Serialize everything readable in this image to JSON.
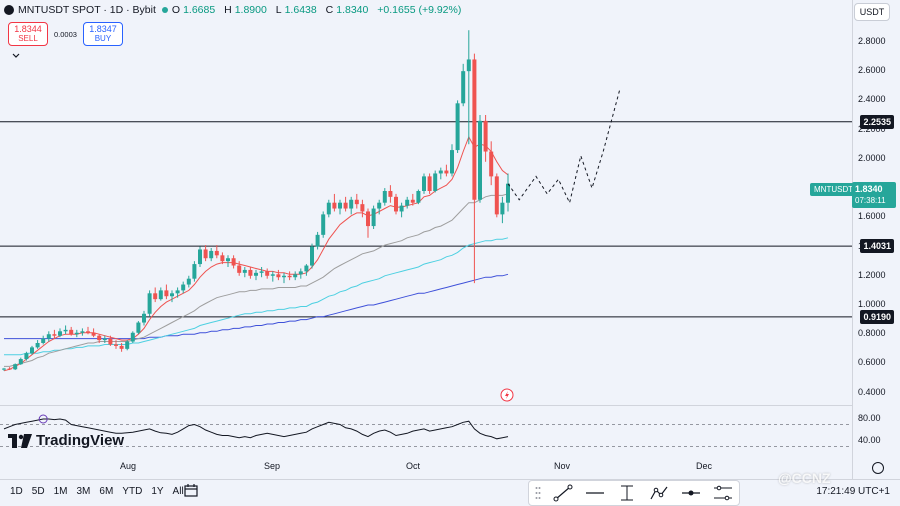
{
  "header": {
    "symbol": "MNTUSDT SPOT · 1D · Bybit",
    "open_label": "O",
    "open": "1.6685",
    "high_label": "H",
    "high": "1.8900",
    "low_label": "L",
    "low": "1.6438",
    "close_label": "C",
    "close": "1.8340",
    "change": "+0.1655 (+9.92%)"
  },
  "trade": {
    "sell_price": "1.8344",
    "sell_label": "SELL",
    "spread": "0.0003",
    "buy_price": "1.8347",
    "buy_label": "BUY"
  },
  "currency": "USDT",
  "price_axis": [
    "2.8000",
    "2.6000",
    "2.4000",
    "2.2000",
    "2.0000",
    "1.8000",
    "1.6000",
    "1.4000",
    "1.2000",
    "1.0000",
    "0.8000",
    "0.6000",
    "0.4000"
  ],
  "levels": [
    {
      "label": "2.2535",
      "value": 2.2535
    },
    {
      "label": "1.4031",
      "value": 1.4031
    },
    {
      "label": "0.9190",
      "value": 0.919
    }
  ],
  "last_price": {
    "symbol": "MNTUSDT",
    "price": "1.8340",
    "countdown": "07:38:11"
  },
  "osc_axis": [
    "80.00",
    "40.00"
  ],
  "time_axis": [
    "Aug",
    "Sep",
    "Oct",
    "Nov",
    "Dec"
  ],
  "brand": "TradingView",
  "ranges": [
    "1D",
    "5D",
    "1M",
    "3M",
    "6M",
    "YTD",
    "1Y",
    "All"
  ],
  "tools": [
    "trend-line",
    "horizontal-line",
    "fib",
    "path",
    "arrow",
    "ranges"
  ],
  "clock": "17:21:49 UTC+1",
  "watermark": "@CCNZ",
  "colors": {
    "up": "#26a69a",
    "down": "#ef5350",
    "ema_fast": "#ef5350",
    "ema_mid": "#9e9e9e",
    "ema_slow": "#4dd0e1",
    "ema_long": "#3f51d9"
  },
  "chart_data": {
    "type": "candlestick",
    "y_range": [
      0.35,
      2.95
    ],
    "candles": [
      [
        0.56,
        0.57,
        0.55,
        0.565
      ],
      [
        0.565,
        0.575,
        0.555,
        0.56
      ],
      [
        0.56,
        0.6,
        0.555,
        0.595
      ],
      [
        0.595,
        0.64,
        0.59,
        0.63
      ],
      [
        0.63,
        0.68,
        0.62,
        0.67
      ],
      [
        0.67,
        0.72,
        0.66,
        0.71
      ],
      [
        0.71,
        0.76,
        0.7,
        0.74
      ],
      [
        0.74,
        0.79,
        0.73,
        0.77
      ],
      [
        0.77,
        0.82,
        0.75,
        0.8
      ],
      [
        0.8,
        0.83,
        0.77,
        0.79
      ],
      [
        0.79,
        0.84,
        0.78,
        0.82
      ],
      [
        0.82,
        0.86,
        0.8,
        0.83
      ],
      [
        0.83,
        0.85,
        0.79,
        0.8
      ],
      [
        0.8,
        0.83,
        0.78,
        0.81
      ],
      [
        0.81,
        0.84,
        0.79,
        0.82
      ],
      [
        0.82,
        0.85,
        0.8,
        0.81
      ],
      [
        0.81,
        0.84,
        0.78,
        0.79
      ],
      [
        0.79,
        0.8,
        0.74,
        0.76
      ],
      [
        0.76,
        0.79,
        0.74,
        0.77
      ],
      [
        0.77,
        0.79,
        0.72,
        0.73
      ],
      [
        0.73,
        0.76,
        0.7,
        0.72
      ],
      [
        0.72,
        0.74,
        0.68,
        0.7
      ],
      [
        0.7,
        0.76,
        0.69,
        0.75
      ],
      [
        0.75,
        0.82,
        0.74,
        0.81
      ],
      [
        0.81,
        0.89,
        0.8,
        0.88
      ],
      [
        0.88,
        0.96,
        0.86,
        0.94
      ],
      [
        0.94,
        1.1,
        0.92,
        1.08
      ],
      [
        1.08,
        1.12,
        1.02,
        1.04
      ],
      [
        1.04,
        1.12,
        1.03,
        1.1
      ],
      [
        1.1,
        1.14,
        1.04,
        1.06
      ],
      [
        1.06,
        1.1,
        1.02,
        1.08
      ],
      [
        1.08,
        1.12,
        1.05,
        1.1
      ],
      [
        1.1,
        1.16,
        1.08,
        1.14
      ],
      [
        1.14,
        1.2,
        1.12,
        1.18
      ],
      [
        1.18,
        1.3,
        1.16,
        1.28
      ],
      [
        1.28,
        1.4,
        1.26,
        1.38
      ],
      [
        1.38,
        1.41,
        1.3,
        1.32
      ],
      [
        1.32,
        1.39,
        1.3,
        1.37
      ],
      [
        1.37,
        1.41,
        1.32,
        1.34
      ],
      [
        1.34,
        1.36,
        1.28,
        1.3
      ],
      [
        1.3,
        1.34,
        1.26,
        1.32
      ],
      [
        1.32,
        1.34,
        1.25,
        1.27
      ],
      [
        1.27,
        1.3,
        1.2,
        1.22
      ],
      [
        1.22,
        1.26,
        1.19,
        1.24
      ],
      [
        1.24,
        1.26,
        1.18,
        1.2
      ],
      [
        1.2,
        1.24,
        1.17,
        1.22
      ],
      [
        1.22,
        1.26,
        1.19,
        1.23
      ],
      [
        1.23,
        1.25,
        1.18,
        1.2
      ],
      [
        1.2,
        1.23,
        1.16,
        1.21
      ],
      [
        1.21,
        1.24,
        1.17,
        1.19
      ],
      [
        1.19,
        1.22,
        1.15,
        1.2
      ],
      [
        1.2,
        1.23,
        1.17,
        1.19
      ],
      [
        1.19,
        1.23,
        1.17,
        1.21
      ],
      [
        1.21,
        1.25,
        1.18,
        1.23
      ],
      [
        1.23,
        1.28,
        1.2,
        1.27
      ],
      [
        1.27,
        1.42,
        1.25,
        1.4
      ],
      [
        1.4,
        1.5,
        1.38,
        1.48
      ],
      [
        1.48,
        1.64,
        1.46,
        1.62
      ],
      [
        1.62,
        1.72,
        1.6,
        1.7
      ],
      [
        1.7,
        1.76,
        1.64,
        1.66
      ],
      [
        1.66,
        1.72,
        1.62,
        1.7
      ],
      [
        1.7,
        1.74,
        1.64,
        1.66
      ],
      [
        1.66,
        1.74,
        1.62,
        1.72
      ],
      [
        1.72,
        1.76,
        1.66,
        1.69
      ],
      [
        1.69,
        1.72,
        1.6,
        1.64
      ],
      [
        1.64,
        1.66,
        1.46,
        1.54
      ],
      [
        1.54,
        1.68,
        1.52,
        1.66
      ],
      [
        1.66,
        1.72,
        1.62,
        1.7
      ],
      [
        1.7,
        1.8,
        1.68,
        1.78
      ],
      [
        1.78,
        1.82,
        1.7,
        1.74
      ],
      [
        1.74,
        1.76,
        1.62,
        1.64
      ],
      [
        1.64,
        1.7,
        1.6,
        1.68
      ],
      [
        1.68,
        1.74,
        1.66,
        1.72
      ],
      [
        1.72,
        1.76,
        1.68,
        1.7
      ],
      [
        1.7,
        1.79,
        1.69,
        1.78
      ],
      [
        1.78,
        1.9,
        1.76,
        1.88
      ],
      [
        1.88,
        1.9,
        1.76,
        1.78
      ],
      [
        1.78,
        1.92,
        1.77,
        1.9
      ],
      [
        1.9,
        1.94,
        1.86,
        1.92
      ],
      [
        1.92,
        1.96,
        1.88,
        1.9
      ],
      [
        1.9,
        2.1,
        1.88,
        2.06
      ],
      [
        2.06,
        2.4,
        2.04,
        2.38
      ],
      [
        2.38,
        2.65,
        2.36,
        2.6
      ],
      [
        2.6,
        2.88,
        2.1,
        2.68
      ],
      [
        2.68,
        2.72,
        1.15,
        1.72
      ],
      [
        1.72,
        2.3,
        1.7,
        2.26
      ],
      [
        2.26,
        2.3,
        1.98,
        2.05
      ],
      [
        2.05,
        2.12,
        1.82,
        1.88
      ],
      [
        1.88,
        1.9,
        1.6,
        1.62
      ],
      [
        1.62,
        1.74,
        1.56,
        1.7
      ],
      [
        1.7,
        1.9,
        1.64,
        1.83
      ]
    ],
    "ema_fast": [
      0.55,
      0.56,
      0.58,
      0.6,
      0.63,
      0.66,
      0.69,
      0.72,
      0.75,
      0.77,
      0.79,
      0.8,
      0.8,
      0.8,
      0.81,
      0.81,
      0.81,
      0.8,
      0.79,
      0.78,
      0.77,
      0.76,
      0.76,
      0.77,
      0.8,
      0.84,
      0.9,
      0.95,
      0.99,
      1.02,
      1.04,
      1.06,
      1.08,
      1.1,
      1.14,
      1.19,
      1.23,
      1.26,
      1.28,
      1.29,
      1.29,
      1.29,
      1.28,
      1.27,
      1.26,
      1.25,
      1.24,
      1.23,
      1.23,
      1.22,
      1.22,
      1.21,
      1.21,
      1.21,
      1.22,
      1.26,
      1.31,
      1.38,
      1.45,
      1.5,
      1.55,
      1.58,
      1.61,
      1.63,
      1.63,
      1.61,
      1.62,
      1.64,
      1.66,
      1.68,
      1.67,
      1.67,
      1.68,
      1.69,
      1.7,
      1.74,
      1.75,
      1.78,
      1.8,
      1.82,
      1.86,
      1.94,
      2.05,
      2.15,
      2.08,
      2.1,
      2.09,
      2.05,
      1.98,
      1.92,
      1.89
    ],
    "ema_mid": [
      0.58,
      0.58,
      0.59,
      0.6,
      0.61,
      0.62,
      0.64,
      0.65,
      0.67,
      0.68,
      0.69,
      0.7,
      0.71,
      0.72,
      0.73,
      0.74,
      0.74,
      0.75,
      0.75,
      0.75,
      0.75,
      0.75,
      0.75,
      0.76,
      0.77,
      0.78,
      0.8,
      0.82,
      0.84,
      0.86,
      0.88,
      0.9,
      0.92,
      0.94,
      0.96,
      0.99,
      1.01,
      1.03,
      1.05,
      1.06,
      1.07,
      1.08,
      1.09,
      1.09,
      1.1,
      1.1,
      1.11,
      1.11,
      1.11,
      1.12,
      1.12,
      1.12,
      1.12,
      1.13,
      1.13,
      1.15,
      1.17,
      1.19,
      1.22,
      1.25,
      1.27,
      1.29,
      1.31,
      1.33,
      1.35,
      1.36,
      1.37,
      1.39,
      1.41,
      1.42,
      1.43,
      1.44,
      1.46,
      1.47,
      1.48,
      1.5,
      1.51,
      1.53,
      1.54,
      1.56,
      1.58,
      1.62,
      1.66,
      1.7,
      1.7,
      1.72,
      1.74,
      1.75,
      1.75,
      1.75,
      1.76
    ],
    "ema_slow": [
      0.66,
      0.66,
      0.66,
      0.66,
      0.67,
      0.67,
      0.67,
      0.68,
      0.68,
      0.69,
      0.69,
      0.7,
      0.7,
      0.71,
      0.71,
      0.72,
      0.72,
      0.72,
      0.73,
      0.73,
      0.73,
      0.73,
      0.73,
      0.74,
      0.74,
      0.75,
      0.76,
      0.77,
      0.78,
      0.79,
      0.8,
      0.81,
      0.82,
      0.83,
      0.84,
      0.86,
      0.87,
      0.88,
      0.89,
      0.9,
      0.91,
      0.92,
      0.93,
      0.94,
      0.94,
      0.95,
      0.95,
      0.96,
      0.96,
      0.97,
      0.97,
      0.98,
      0.98,
      0.99,
      0.99,
      1.01,
      1.02,
      1.04,
      1.06,
      1.07,
      1.09,
      1.1,
      1.12,
      1.13,
      1.15,
      1.16,
      1.17,
      1.18,
      1.2,
      1.21,
      1.22,
      1.23,
      1.24,
      1.25,
      1.26,
      1.28,
      1.29,
      1.3,
      1.31,
      1.33,
      1.34,
      1.36,
      1.39,
      1.41,
      1.42,
      1.43,
      1.44,
      1.44,
      1.45,
      1.45,
      1.46
    ],
    "ema_long": [
      0.77,
      0.77,
      0.77,
      0.77,
      0.77,
      0.77,
      0.77,
      0.77,
      0.77,
      0.77,
      0.77,
      0.77,
      0.77,
      0.77,
      0.77,
      0.77,
      0.77,
      0.77,
      0.77,
      0.77,
      0.77,
      0.77,
      0.77,
      0.77,
      0.77,
      0.77,
      0.78,
      0.78,
      0.78,
      0.79,
      0.79,
      0.79,
      0.8,
      0.8,
      0.8,
      0.81,
      0.81,
      0.82,
      0.82,
      0.83,
      0.83,
      0.84,
      0.84,
      0.85,
      0.85,
      0.86,
      0.86,
      0.87,
      0.87,
      0.88,
      0.88,
      0.89,
      0.89,
      0.9,
      0.9,
      0.91,
      0.92,
      0.92,
      0.93,
      0.94,
      0.95,
      0.96,
      0.97,
      0.98,
      0.99,
      1.0,
      1.0,
      1.01,
      1.02,
      1.03,
      1.04,
      1.05,
      1.06,
      1.07,
      1.08,
      1.08,
      1.09,
      1.1,
      1.11,
      1.12,
      1.13,
      1.14,
      1.15,
      1.16,
      1.17,
      1.18,
      1.19,
      1.19,
      1.2,
      1.2,
      1.21
    ],
    "projection": [
      [
        1.83,
        0
      ],
      [
        1.72,
        2
      ],
      [
        1.88,
        5
      ],
      [
        1.76,
        7
      ],
      [
        1.86,
        9
      ],
      [
        1.7,
        11
      ],
      [
        2.02,
        13
      ],
      [
        1.8,
        15
      ],
      [
        2.05,
        17
      ],
      [
        2.48,
        20
      ]
    ],
    "osc_range": [
      20,
      100
    ],
    "osc_levels": [
      70,
      30
    ],
    "oscillator": [
      62,
      66,
      70,
      72,
      74,
      76,
      78,
      80,
      80,
      79,
      80,
      78,
      70,
      68,
      66,
      64,
      62,
      60,
      58,
      56,
      54,
      54,
      55,
      56,
      58,
      60,
      62,
      58,
      55,
      54,
      52,
      56,
      62,
      68,
      70,
      66,
      60,
      56,
      52,
      50,
      50,
      48,
      46,
      48,
      46,
      50,
      52,
      54,
      52,
      50,
      48,
      50,
      52,
      54,
      56,
      62,
      66,
      70,
      74,
      72,
      70,
      64,
      62,
      58,
      52,
      48,
      54,
      58,
      60,
      56,
      50,
      52,
      54,
      58,
      60,
      62,
      58,
      60,
      62,
      64,
      66,
      70,
      74,
      76,
      62,
      54,
      50,
      48,
      44,
      46,
      48
    ]
  }
}
